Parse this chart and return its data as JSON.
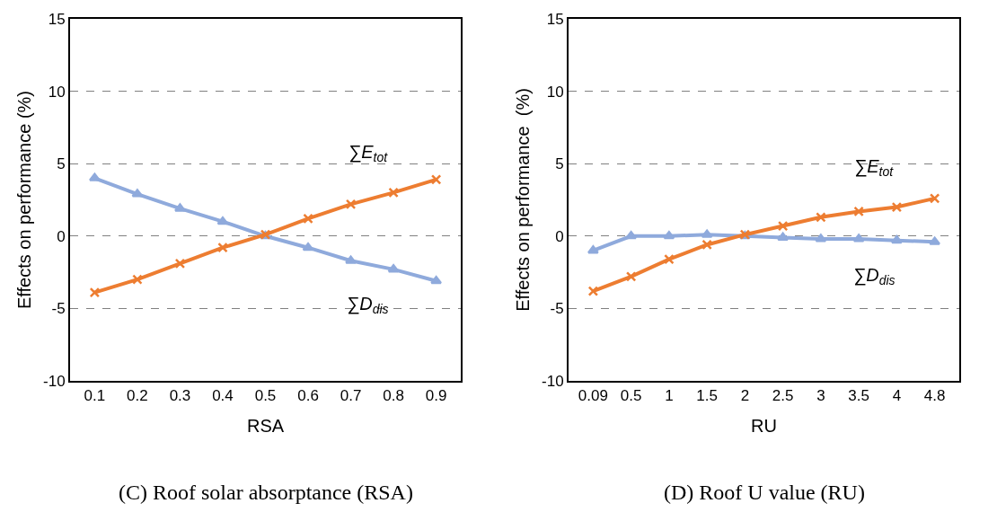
{
  "chart_data": [
    {
      "type": "line",
      "categories": [
        "0.1",
        "0.2",
        "0.3",
        "0.4",
        "0.5",
        "0.6",
        "0.7",
        "0.8",
        "0.9"
      ],
      "xlabel": "RSA",
      "ylabel": "Effects on performance (%)",
      "ylim": [
        -10,
        15
      ],
      "yticks": [
        -10,
        -5,
        0,
        5,
        10,
        15
      ],
      "grid": "y",
      "series": [
        {
          "name": "∑D$_{dis}$",
          "color": "#8faadc",
          "marker": "triangle",
          "values": [
            4.0,
            2.9,
            1.9,
            1.0,
            0.0,
            -0.8,
            -1.7,
            -2.3,
            -3.1
          ]
        },
        {
          "name": "∑E$_{tot}$",
          "color": "#ed7d31",
          "marker": "cross",
          "values": [
            -3.9,
            -3.0,
            -1.9,
            -0.8,
            0.1,
            1.2,
            2.2,
            3.0,
            3.9
          ]
        }
      ],
      "annotations": [
        "(C) Roof solar absorptance (RSA)"
      ]
    },
    {
      "type": "line",
      "categories": [
        "0.09",
        "0.5",
        "1",
        "1.5",
        "2",
        "2.5",
        "3",
        "3.5",
        "4",
        "4.8"
      ],
      "xlabel": "RU",
      "ylabel": "Effects on performance  (%)",
      "ylim": [
        -10,
        15
      ],
      "yticks": [
        -10,
        -5,
        0,
        5,
        10,
        15
      ],
      "grid": "y",
      "series": [
        {
          "name": "∑D$_{dis}$",
          "color": "#8faadc",
          "marker": "triangle",
          "values": [
            -1.0,
            0.0,
            0.0,
            0.1,
            0.0,
            -0.1,
            -0.2,
            -0.2,
            -0.3,
            -0.4
          ]
        },
        {
          "name": "∑E$_{tot}$",
          "color": "#ed7d31",
          "marker": "cross",
          "values": [
            -3.8,
            -2.8,
            -1.6,
            -0.6,
            0.1,
            0.7,
            1.3,
            1.7,
            2.0,
            2.6
          ]
        }
      ],
      "annotations": [
        "(D) Roof U value (RU)"
      ]
    }
  ]
}
